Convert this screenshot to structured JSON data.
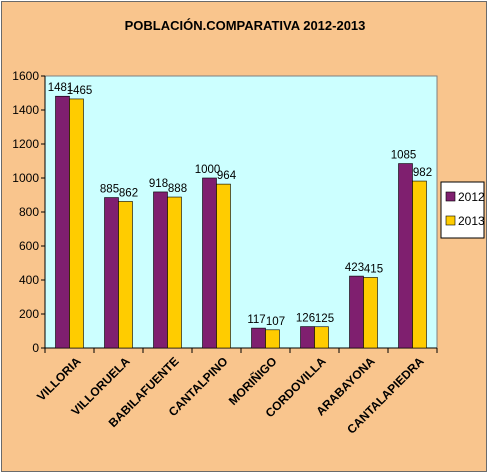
{
  "chart_data": {
    "type": "bar",
    "title": "POBLACIÓN.COMPARATIVA 2012-2013",
    "categories": [
      "VILLORIA",
      "VILLORUELA",
      "BABILAFUENTE",
      "CANTALPINO",
      "MORIÑIGO",
      "CORDOVILLA",
      "ARABAYONA",
      "CANTALAPIEDRA"
    ],
    "series": [
      {
        "name": "2012",
        "values": [
          1481,
          885,
          918,
          1000,
          117,
          126,
          423,
          1085
        ],
        "color": "#7f1f6f"
      },
      {
        "name": "2013",
        "values": [
          1465,
          862,
          888,
          964,
          107,
          125,
          415,
          982
        ],
        "color": "#ffcc00"
      }
    ],
    "ylim": [
      0,
      1600
    ],
    "yticks": [
      0,
      200,
      400,
      600,
      800,
      1000,
      1200,
      1400,
      1600
    ],
    "grid": false,
    "legend": "right",
    "plot_background": "#ccffff",
    "chart_background": "#f9c58d"
  }
}
